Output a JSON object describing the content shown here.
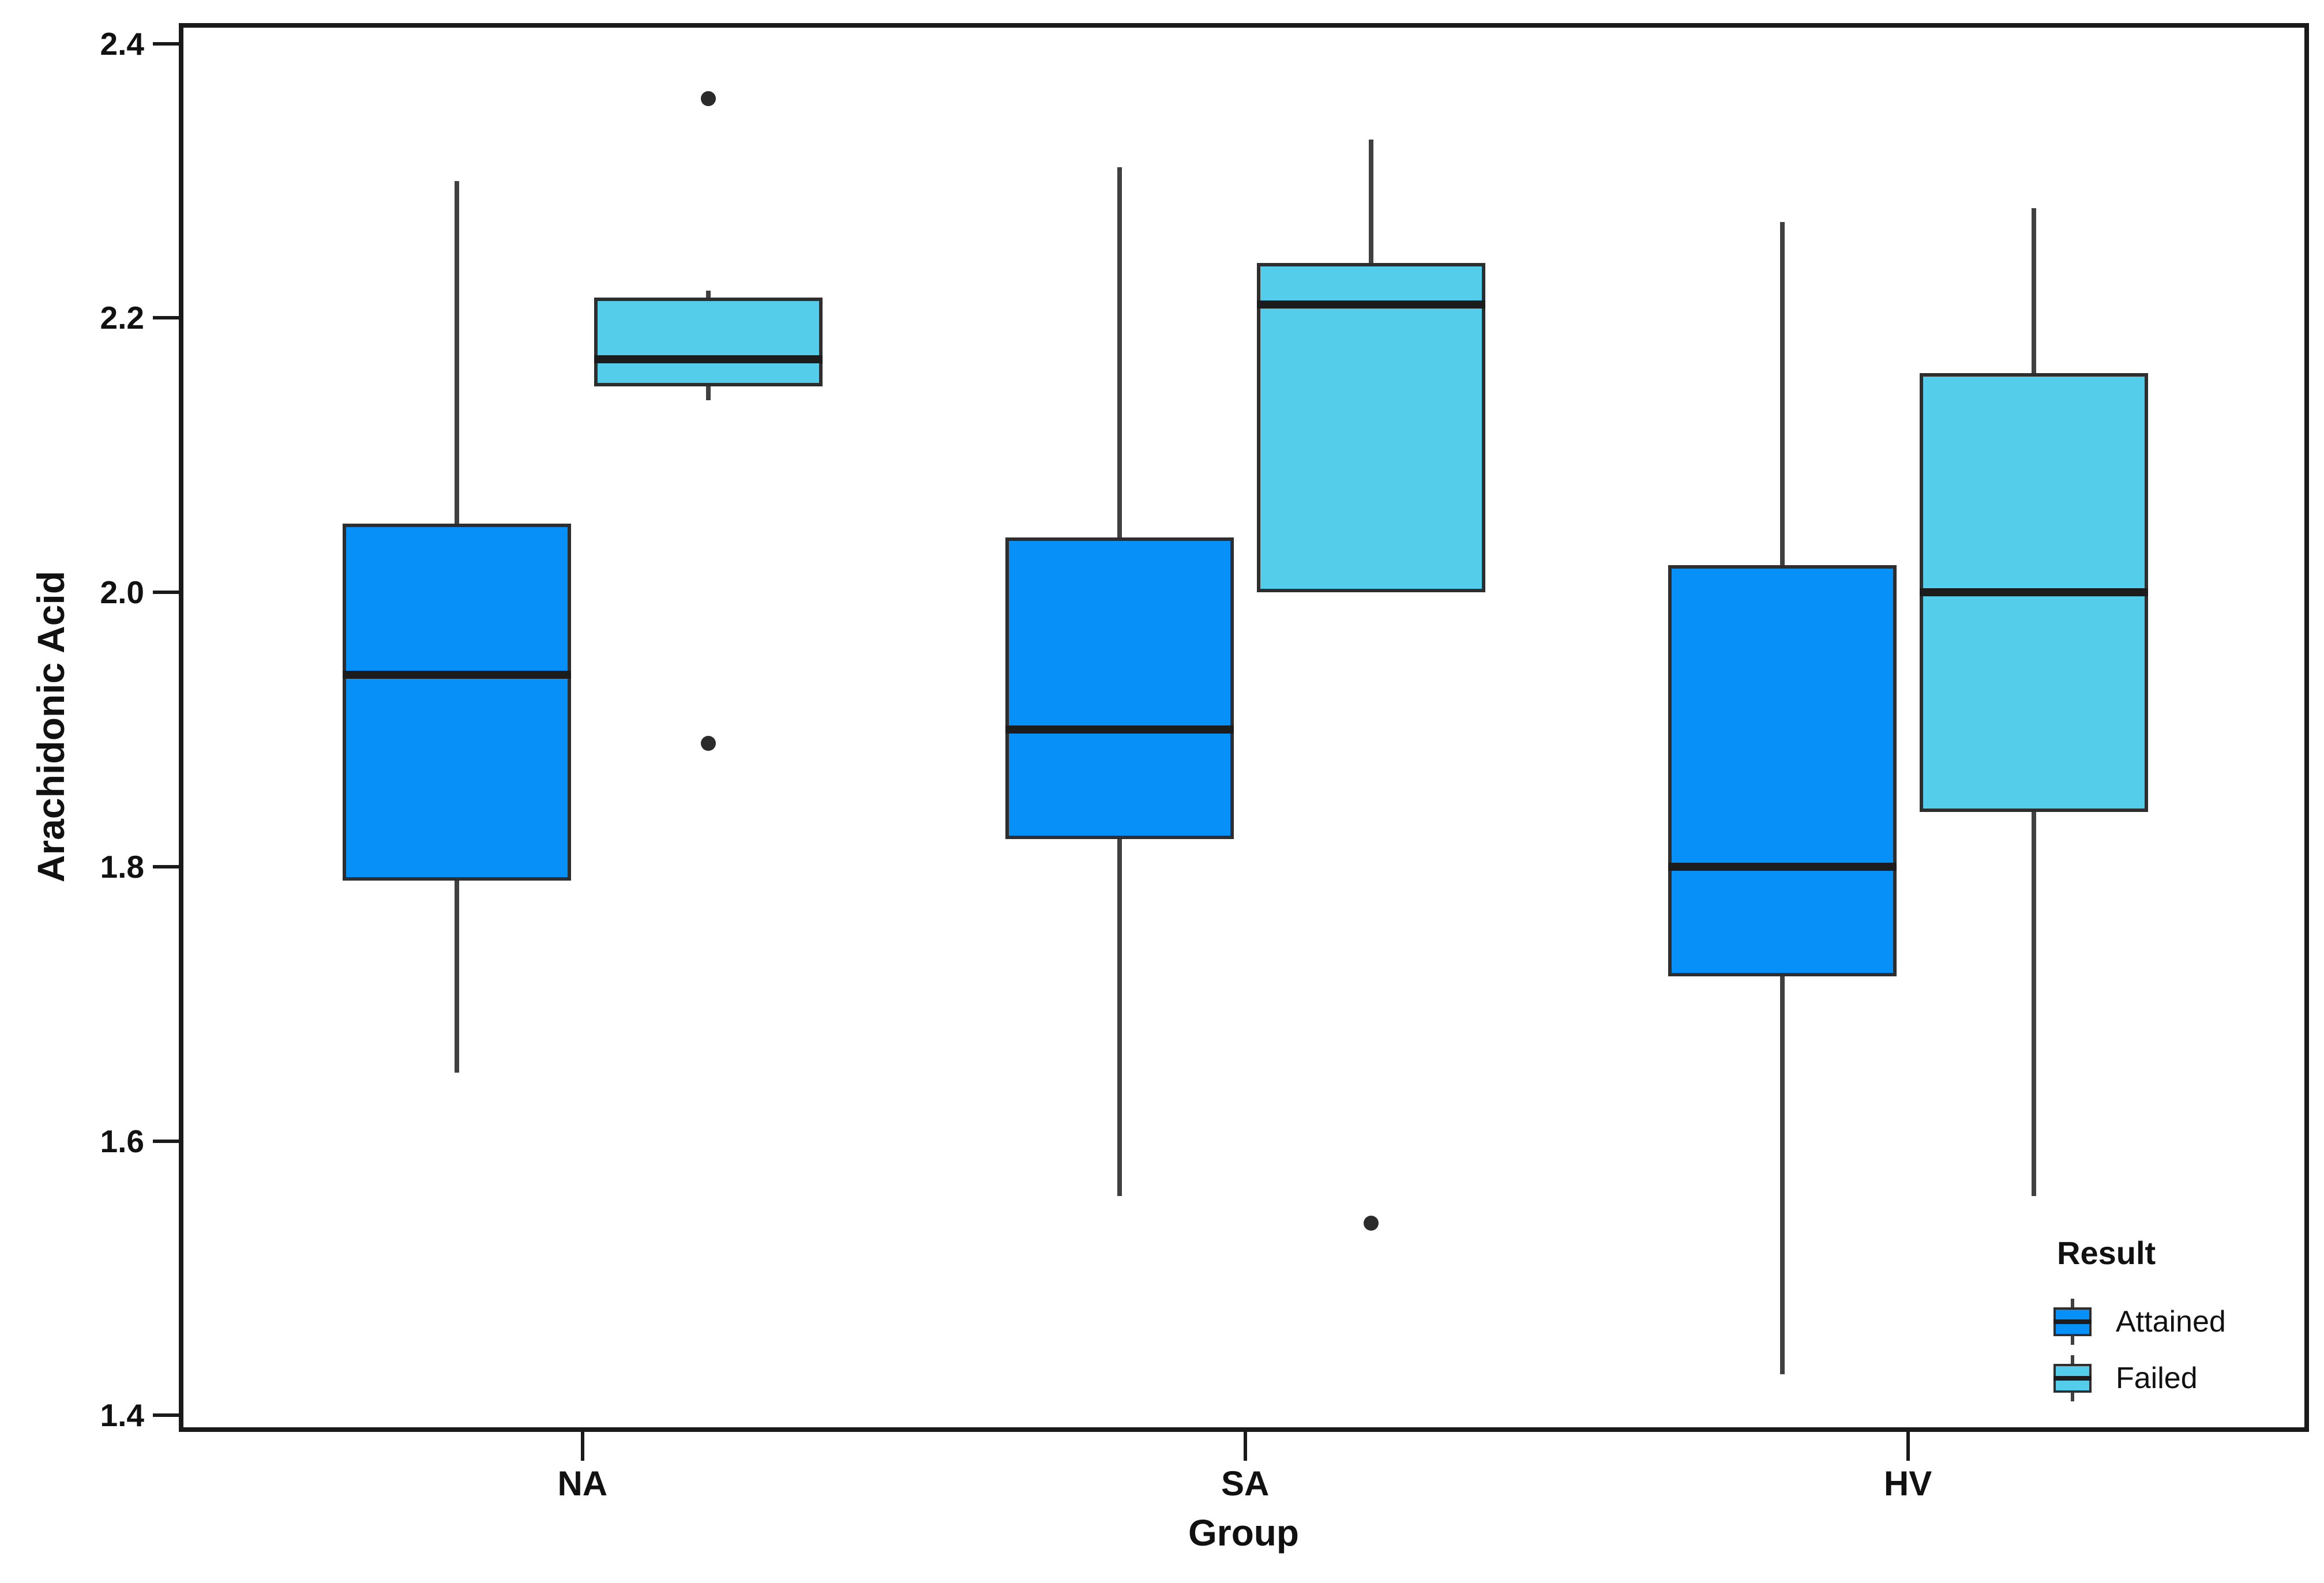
{
  "chart_data": {
    "type": "boxplot",
    "title": "",
    "ylabel": "Arachidonic Acid",
    "xlabel": "Group",
    "categories": [
      "NA",
      "SA",
      "HV"
    ],
    "ylim": [
      1.388,
      2.415
    ],
    "yticks": [
      2.4,
      2.2,
      2.0,
      1.8,
      1.6,
      1.4
    ],
    "grid": false,
    "legend": {
      "title": "Result",
      "position": "bottom-right-inside",
      "entries": [
        "Attained",
        "Failed"
      ]
    },
    "series": [
      {
        "name": "Attained",
        "color": "#0790f8",
        "boxes": [
          {
            "category": "NA",
            "whisker_low": 1.65,
            "q1": 1.79,
            "median": 1.94,
            "q3": 2.05,
            "whisker_high": 2.3,
            "outliers": []
          },
          {
            "category": "SA",
            "whisker_low": 1.56,
            "q1": 1.82,
            "median": 1.9,
            "q3": 2.04,
            "whisker_high": 2.31,
            "outliers": []
          },
          {
            "category": "HV",
            "whisker_low": 1.43,
            "q1": 1.72,
            "median": 1.8,
            "q3": 2.02,
            "whisker_high": 2.27,
            "outliers": []
          }
        ]
      },
      {
        "name": "Failed",
        "color": "#53cde9",
        "boxes": [
          {
            "category": "NA",
            "whisker_low": 2.14,
            "q1": 2.15,
            "median": 2.17,
            "q3": 2.215,
            "whisker_high": 2.22,
            "outliers": [
              2.36,
              1.89
            ]
          },
          {
            "category": "SA",
            "whisker_low": 2.0,
            "q1": 2.0,
            "median": 2.21,
            "q3": 2.24,
            "whisker_high": 2.33,
            "outliers": [
              1.54
            ]
          },
          {
            "category": "HV",
            "whisker_low": 1.56,
            "q1": 1.84,
            "median": 2.0,
            "q3": 2.16,
            "whisker_high": 2.28,
            "outliers": []
          }
        ]
      }
    ],
    "colors": {
      "attained": "#0790f8",
      "failed": "#53cde9",
      "box_border": "#2e2e2e",
      "median_line": "#1c1c1c",
      "whisker": "#404040",
      "outlier": "#2b2b2b",
      "axis": "#1a1a1a",
      "background": "#ffffff"
    }
  }
}
